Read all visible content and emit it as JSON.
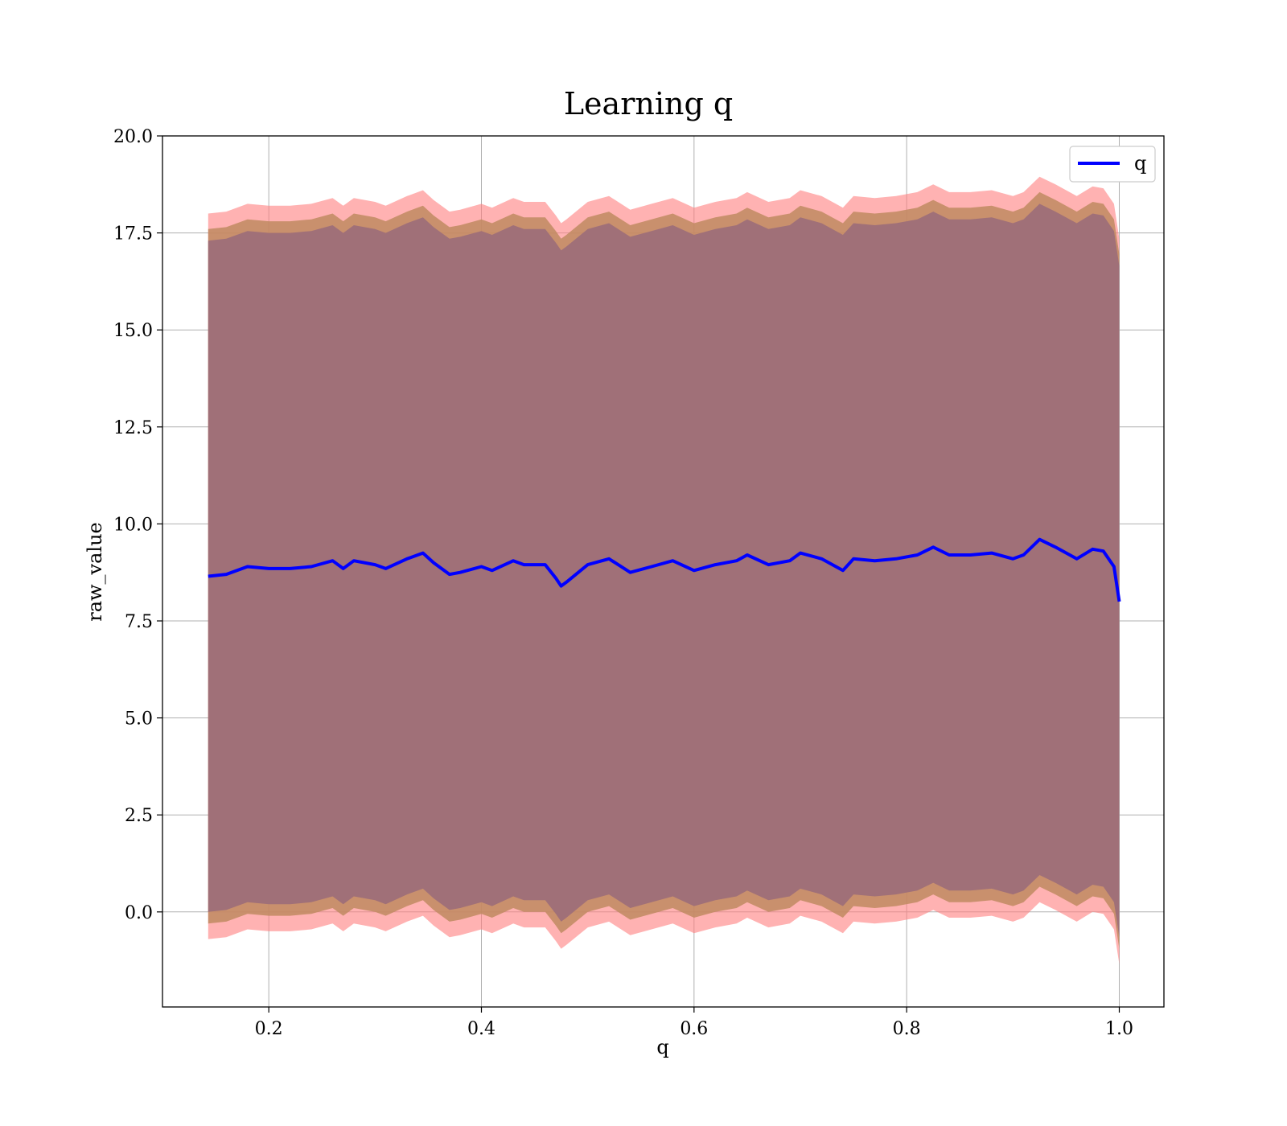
{
  "chart_data": {
    "type": "line",
    "title": "Learning q",
    "xlabel": "q",
    "ylabel": "raw_value",
    "xlim": [
      0.1,
      1.042
    ],
    "ylim": [
      -2.45,
      20.0
    ],
    "grid": true,
    "legend_position": "top-right",
    "xticks": [
      0.2,
      0.4,
      0.6,
      0.8,
      1.0
    ],
    "xtick_labels": [
      "0.2",
      "0.4",
      "0.6",
      "0.8",
      "1.0"
    ],
    "yticks": [
      0.0,
      2.5,
      5.0,
      7.5,
      10.0,
      12.5,
      15.0,
      17.5,
      20.0
    ],
    "ytick_labels": [
      "0.0",
      "2.5",
      "5.0",
      "7.5",
      "10.0",
      "12.5",
      "15.0",
      "17.5",
      "20.0"
    ],
    "colors": {
      "line": "#0000ff",
      "outer_band": "#ff7f7f",
      "middle_band": "#c08a60",
      "inner_band": "#a07078",
      "grid": "#b0b0b0"
    },
    "series": [
      {
        "name": "q",
        "x": [
          0.143,
          0.16,
          0.18,
          0.2,
          0.22,
          0.24,
          0.26,
          0.27,
          0.28,
          0.3,
          0.31,
          0.33,
          0.345,
          0.355,
          0.37,
          0.38,
          0.4,
          0.41,
          0.43,
          0.44,
          0.46,
          0.47,
          0.475,
          0.48,
          0.5,
          0.52,
          0.54,
          0.56,
          0.58,
          0.6,
          0.62,
          0.64,
          0.65,
          0.67,
          0.69,
          0.7,
          0.72,
          0.74,
          0.75,
          0.77,
          0.79,
          0.81,
          0.825,
          0.84,
          0.86,
          0.88,
          0.9,
          0.91,
          0.925,
          0.94,
          0.96,
          0.975,
          0.985,
          0.995,
          1.0
        ],
        "y": [
          8.65,
          8.7,
          8.9,
          8.85,
          8.85,
          8.9,
          9.05,
          8.85,
          9.05,
          8.95,
          8.85,
          9.1,
          9.25,
          9.0,
          8.7,
          8.75,
          8.9,
          8.8,
          9.05,
          8.95,
          8.95,
          8.6,
          8.4,
          8.5,
          8.95,
          9.1,
          8.75,
          8.9,
          9.05,
          8.8,
          8.95,
          9.05,
          9.2,
          8.95,
          9.05,
          9.25,
          9.1,
          8.8,
          9.1,
          9.05,
          9.1,
          9.2,
          9.4,
          9.2,
          9.2,
          9.25,
          9.1,
          9.2,
          9.6,
          9.4,
          9.1,
          9.35,
          9.3,
          8.9,
          8.0
        ],
        "bands": [
          {
            "upper_offset": 9.35,
            "lower_offset": -9.35
          },
          {
            "upper_offset": 8.95,
            "lower_offset": -8.95
          },
          {
            "upper_offset": 8.65,
            "lower_offset": -8.65
          }
        ]
      }
    ]
  }
}
